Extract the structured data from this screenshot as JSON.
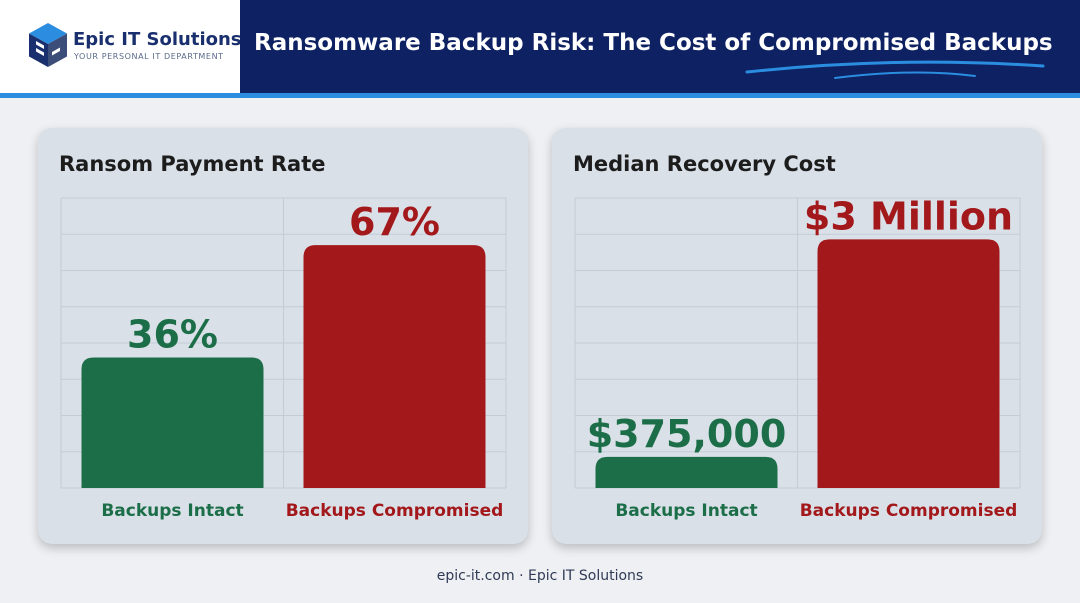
{
  "header": {
    "company_name": "Epic IT Solutions",
    "tagline": "YOUR PERSONAL IT DEPARTMENT",
    "title": "Ransomware Backup Risk: The Cost of Compromised Backups"
  },
  "colors": {
    "navy": "#0e2163",
    "accent": "#2a8de0",
    "green": "#1b6e47",
    "red": "#a3191b"
  },
  "chart_data": [
    {
      "type": "bar",
      "title": "Ransom Payment Rate",
      "categories": [
        "Backups Intact",
        "Backups Compromised"
      ],
      "values": [
        36,
        67
      ],
      "value_labels": [
        "36%",
        "67%"
      ],
      "ylim": [
        0,
        80
      ],
      "grid": true,
      "colors": [
        "#1b6e47",
        "#a3191b"
      ]
    },
    {
      "type": "bar",
      "title": "Median Recovery Cost",
      "categories": [
        "Backups Intact",
        "Backups Compromised"
      ],
      "values": [
        375000,
        3000000
      ],
      "value_labels": [
        "$375,000",
        "$3 Million"
      ],
      "ylim": [
        0,
        3500000
      ],
      "grid": true,
      "colors": [
        "#1b6e47",
        "#a3191b"
      ]
    }
  ],
  "footer": {
    "text": "epic-it.com · Epic IT Solutions"
  }
}
